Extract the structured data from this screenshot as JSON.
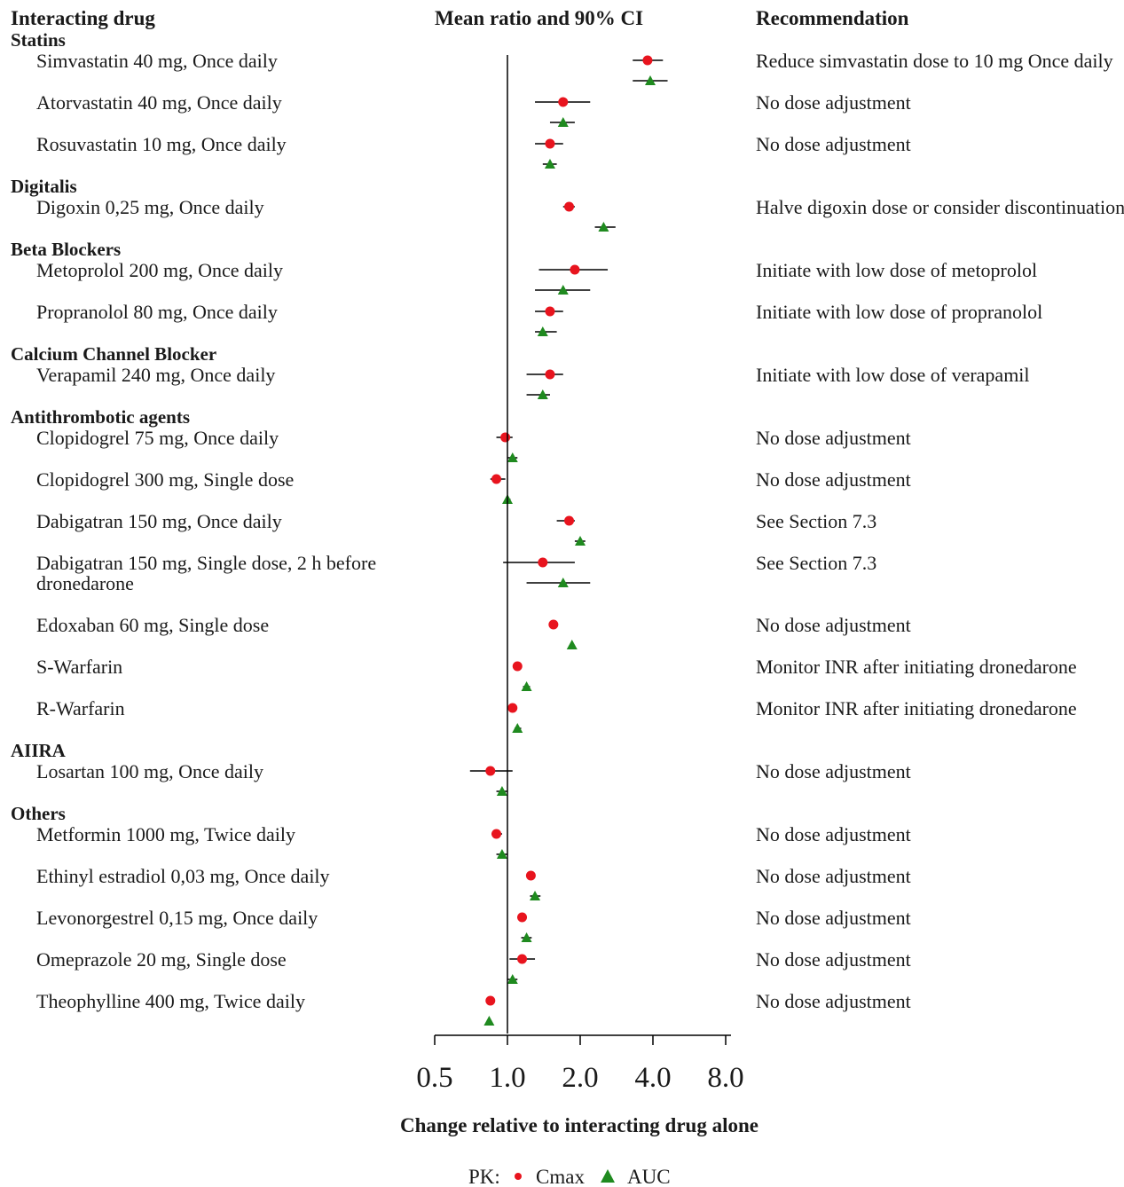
{
  "headers": {
    "drug": "Interacting drug",
    "ci": "Mean ratio and 90% CI",
    "rec": "Recommendation"
  },
  "chart_data": {
    "type": "forest",
    "xlabel": "Change relative to interacting drug alone",
    "xscale": "log2",
    "xlim": [
      0.5,
      8.0
    ],
    "xticks": [
      0.5,
      1.0,
      2.0,
      4.0,
      8.0
    ],
    "xtick_labels": [
      "0.5",
      "1.0",
      "2.0",
      "4.0",
      "8.0"
    ],
    "reference_line": 1.0,
    "legend": {
      "prefix": "PK:",
      "cmax": "Cmax",
      "auc": "AUC",
      "placement": "bottom-center"
    },
    "colors": {
      "cmax": "#e8141e",
      "auc": "#1f8a1f"
    },
    "groups": [
      {
        "name": "Statins",
        "drugs": [
          {
            "label": [
              "Simvastatin 40 mg, Once daily"
            ],
            "rec": "Reduce simvastatin dose to 10 mg Once daily",
            "cmax": {
              "est": 3.8,
              "lo": 3.3,
              "hi": 4.4
            },
            "auc": {
              "est": 3.9,
              "lo": 3.3,
              "hi": 4.6
            }
          },
          {
            "label": [
              "Atorvastatin 40 mg, Once daily"
            ],
            "rec": "No dose adjustment",
            "cmax": {
              "est": 1.7,
              "lo": 1.3,
              "hi": 2.2
            },
            "auc": {
              "est": 1.7,
              "lo": 1.5,
              "hi": 1.9
            }
          },
          {
            "label": [
              "Rosuvastatin 10 mg, Once daily"
            ],
            "rec": "No dose adjustment",
            "cmax": {
              "est": 1.5,
              "lo": 1.3,
              "hi": 1.7
            },
            "auc": {
              "est": 1.5,
              "lo": 1.4,
              "hi": 1.6
            }
          }
        ]
      },
      {
        "name": "Digitalis",
        "drugs": [
          {
            "label": [
              "Digoxin 0,25 mg, Once daily"
            ],
            "rec": "Halve digoxin dose or consider discontinuation",
            "cmax": {
              "est": 1.8,
              "lo": 1.7,
              "hi": 1.9
            },
            "auc": {
              "est": 2.5,
              "lo": 2.3,
              "hi": 2.8
            }
          }
        ]
      },
      {
        "name": "Beta Blockers",
        "drugs": [
          {
            "label": [
              "Metoprolol 200 mg, Once daily"
            ],
            "rec": "Initiate with low dose of metoprolol",
            "cmax": {
              "est": 1.9,
              "lo": 1.35,
              "hi": 2.6
            },
            "auc": {
              "est": 1.7,
              "lo": 1.3,
              "hi": 2.2
            }
          },
          {
            "label": [
              "Propranolol 80 mg, Once daily"
            ],
            "rec": "Initiate with low dose of propranolol",
            "cmax": {
              "est": 1.5,
              "lo": 1.3,
              "hi": 1.7
            },
            "auc": {
              "est": 1.4,
              "lo": 1.3,
              "hi": 1.6
            }
          }
        ]
      },
      {
        "name": "Calcium Channel Blocker",
        "drugs": [
          {
            "label": [
              "Verapamil 240 mg, Once daily"
            ],
            "rec": "Initiate with low dose of verapamil",
            "cmax": {
              "est": 1.5,
              "lo": 1.2,
              "hi": 1.7
            },
            "auc": {
              "est": 1.4,
              "lo": 1.2,
              "hi": 1.5
            }
          }
        ]
      },
      {
        "name": "Antithrombotic agents",
        "drugs": [
          {
            "label": [
              "Clopidogrel 75 mg, Once daily"
            ],
            "rec": "No dose adjustment",
            "cmax": {
              "est": 0.98,
              "lo": 0.9,
              "hi": 1.05
            },
            "auc": {
              "est": 1.05,
              "lo": 1.0,
              "hi": 1.1
            }
          },
          {
            "label": [
              "Clopidogrel 300 mg, Single dose"
            ],
            "rec": "No dose adjustment",
            "cmax": {
              "est": 0.9,
              "lo": 0.85,
              "hi": 0.98
            },
            "auc": {
              "est": 1.0,
              "lo": 0.98,
              "hi": 1.03
            }
          },
          {
            "label": [
              "Dabigatran 150 mg, Once daily"
            ],
            "rec": "See Section 7.3",
            "cmax": {
              "est": 1.8,
              "lo": 1.6,
              "hi": 1.9
            },
            "auc": {
              "est": 2.0,
              "lo": 1.9,
              "hi": 2.1
            }
          },
          {
            "label": [
              "Dabigatran 150 mg, Single dose, 2 h before",
              "dronedarone"
            ],
            "rec": "See Section 7.3",
            "cmax": {
              "est": 1.4,
              "lo": 0.96,
              "hi": 1.9
            },
            "auc": {
              "est": 1.7,
              "lo": 1.2,
              "hi": 2.2
            }
          },
          {
            "label": [
              "Edoxaban 60 mg, Single dose"
            ],
            "rec": "No dose adjustment",
            "cmax": {
              "est": 1.55,
              "lo": 1.52,
              "hi": 1.58
            },
            "auc": {
              "est": 1.85,
              "lo": 1.83,
              "hi": 1.87
            }
          },
          {
            "label": [
              "S-Warfarin"
            ],
            "rec": "Monitor INR after initiating dronedarone",
            "cmax": {
              "est": 1.1,
              "lo": 1.07,
              "hi": 1.13
            },
            "auc": {
              "est": 1.2,
              "lo": 1.16,
              "hi": 1.24
            }
          },
          {
            "label": [
              "R-Warfarin"
            ],
            "rec": "Monitor INR after initiating dronedarone",
            "cmax": {
              "est": 1.05,
              "lo": 1.02,
              "hi": 1.08
            },
            "auc": {
              "est": 1.1,
              "lo": 1.07,
              "hi": 1.14
            }
          }
        ]
      },
      {
        "name": "AIIRA",
        "drugs": [
          {
            "label": [
              "Losartan 100 mg, Once daily"
            ],
            "rec": "No dose adjustment",
            "cmax": {
              "est": 0.85,
              "lo": 0.7,
              "hi": 1.05
            },
            "auc": {
              "est": 0.95,
              "lo": 0.9,
              "hi": 1.0
            }
          }
        ]
      },
      {
        "name": "Others",
        "drugs": [
          {
            "label": [
              "Metformin 1000 mg, Twice daily"
            ],
            "rec": "No dose adjustment",
            "cmax": {
              "est": 0.9,
              "lo": 0.86,
              "hi": 0.95
            },
            "auc": {
              "est": 0.95,
              "lo": 0.9,
              "hi": 1.0
            }
          },
          {
            "label": [
              "Ethinyl estradiol 0,03 mg, Once daily"
            ],
            "rec": "No dose adjustment",
            "cmax": {
              "est": 1.25,
              "lo": 1.2,
              "hi": 1.3
            },
            "auc": {
              "est": 1.3,
              "lo": 1.24,
              "hi": 1.37
            }
          },
          {
            "label": [
              "Levonorgestrel 0,15 mg, Once daily"
            ],
            "rec": "No dose adjustment",
            "cmax": {
              "est": 1.15,
              "lo": 1.1,
              "hi": 1.2
            },
            "auc": {
              "est": 1.2,
              "lo": 1.14,
              "hi": 1.26
            }
          },
          {
            "label": [
              "Omeprazole 20 mg, Single dose"
            ],
            "rec": "No dose adjustment",
            "cmax": {
              "est": 1.15,
              "lo": 1.02,
              "hi": 1.3
            },
            "auc": {
              "est": 1.05,
              "lo": 1.0,
              "hi": 1.1
            }
          },
          {
            "label": [
              "Theophylline 400 mg, Twice daily"
            ],
            "rec": "No dose adjustment",
            "cmax": {
              "est": 0.85,
              "lo": 0.83,
              "hi": 0.87
            },
            "auc": {
              "est": 0.84,
              "lo": 0.82,
              "hi": 0.86
            }
          }
        ]
      }
    ]
  }
}
